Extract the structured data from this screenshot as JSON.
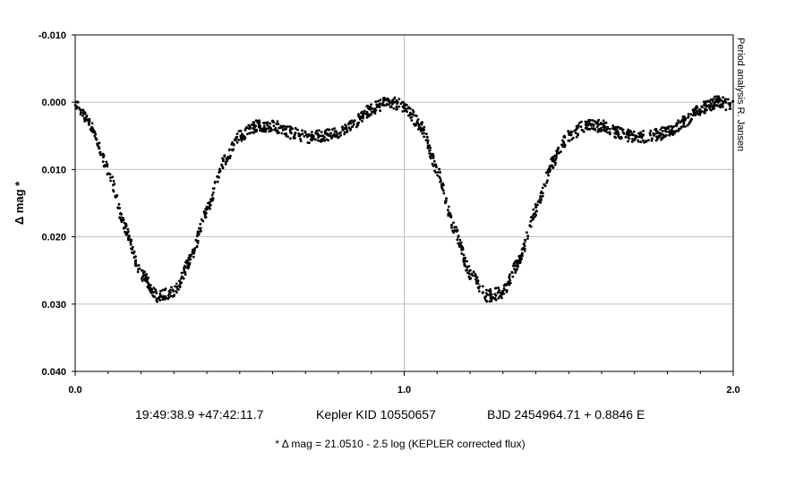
{
  "chart_data": {
    "type": "scatter",
    "title": "",
    "xlabel": "",
    "ylabel": "Δ mag *",
    "xlim": [
      0.0,
      2.0
    ],
    "ylim": [
      -0.01,
      0.04
    ],
    "y_inverted": true,
    "grid": true,
    "x_ticks": [
      "0.0",
      "1.0",
      "2.0"
    ],
    "y_ticks": [
      "-0.010",
      "0.000",
      "0.010",
      "0.020",
      "0.030",
      "0.040"
    ],
    "x_tick_values": [
      0.0,
      1.0,
      2.0
    ],
    "y_tick_values": [
      -0.01,
      0.0,
      0.01,
      0.02,
      0.03,
      0.04
    ],
    "x_minor_step": 0.1,
    "series": [
      {
        "x": [
          0.0,
          0.05,
          0.1,
          0.15,
          0.2,
          0.25,
          0.3,
          0.35,
          0.4,
          0.45,
          0.5,
          0.55,
          0.6,
          0.65,
          0.7,
          0.75,
          0.8,
          0.85,
          0.9,
          0.95,
          1.0,
          1.05,
          1.1,
          1.15,
          1.2,
          1.25,
          1.3,
          1.35,
          1.4,
          1.45,
          1.5,
          1.55,
          1.6,
          1.65,
          1.7,
          1.75,
          1.8,
          1.85,
          1.9,
          1.95,
          2.0
        ],
        "y": [
          0.0005,
          0.0035,
          0.01,
          0.0185,
          0.0255,
          0.0288,
          0.0283,
          0.0235,
          0.016,
          0.009,
          0.005,
          0.0035,
          0.0035,
          0.0045,
          0.0052,
          0.005,
          0.0045,
          0.003,
          0.001,
          0.0,
          0.0005,
          0.0035,
          0.01,
          0.0185,
          0.0255,
          0.0288,
          0.0283,
          0.0235,
          0.016,
          0.009,
          0.005,
          0.0035,
          0.0035,
          0.0045,
          0.0052,
          0.005,
          0.0045,
          0.003,
          0.001,
          0.0,
          0.0005
        ],
        "color": "#000000"
      }
    ]
  },
  "caption": {
    "coordinates": "19:49:38.9 +47:42:11.7",
    "kepler_id": "Kepler KID 10550657",
    "ephemeris": "BJD 2454964.71 + 0.8846 E"
  },
  "footnote": "* Δ mag = 21.0510 - 2.5 log (KEPLER corrected flux)",
  "credit": "Period analysis  R. Jansen",
  "colors": {
    "points": "#000000",
    "grid": "#c0c0c0",
    "axes": "#000000",
    "background": "#ffffff"
  }
}
